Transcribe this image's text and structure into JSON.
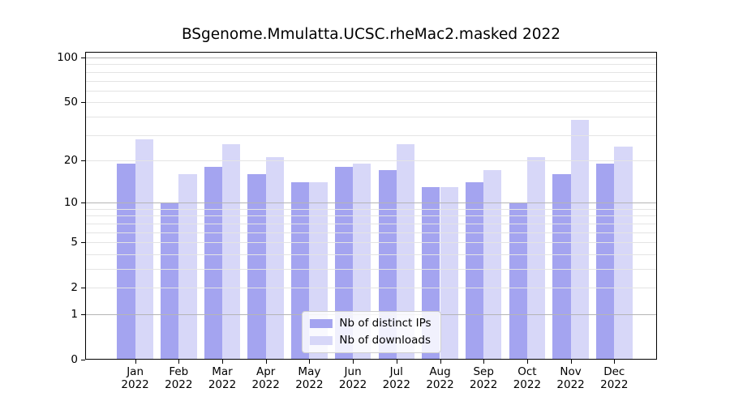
{
  "title": "BSgenome.Mmulatta.UCSC.rheMac2.masked 2022",
  "chart_data": {
    "type": "bar",
    "title": "BSgenome.Mmulatta.UCSC.rheMac2.masked 2022",
    "categories": [
      "Jan",
      "Feb",
      "Mar",
      "Apr",
      "May",
      "Jun",
      "Jul",
      "Aug",
      "Sep",
      "Oct",
      "Nov",
      "Dec"
    ],
    "category_year": "2022",
    "series": [
      {
        "name": "Nb of distinct IPs",
        "color": "#a4a4f0",
        "values": [
          19,
          10,
          18,
          16,
          14,
          18,
          17,
          13,
          14,
          10,
          16,
          19
        ]
      },
      {
        "name": "Nb of downloads",
        "color": "#d7d7f8",
        "values": [
          28,
          16,
          26,
          21,
          14,
          19,
          26,
          13,
          17,
          21,
          38,
          25
        ]
      }
    ],
    "xlabel": "",
    "ylabel": "",
    "y_scale": "log10(v+1)",
    "ylim": [
      0,
      105
    ],
    "y_ticks": [
      0,
      1,
      2,
      5,
      10,
      20,
      50,
      100
    ],
    "y_grid_major": [
      1,
      10,
      100
    ],
    "y_grid_minor": [
      2,
      3,
      4,
      5,
      6,
      7,
      8,
      9,
      20,
      30,
      40,
      50,
      60,
      70,
      80,
      90
    ],
    "grid": "on",
    "legend_position": "lower center",
    "colors": {
      "grid_major": "#b5b5b5",
      "grid_minor": "#e4e4e4",
      "axis": "#000000",
      "background": "#ffffff"
    }
  }
}
